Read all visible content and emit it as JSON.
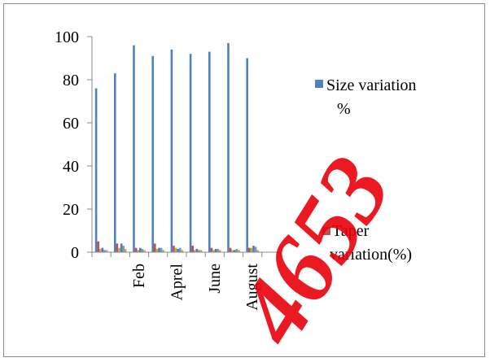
{
  "chart_data": {
    "type": "bar",
    "categories": [
      "",
      "",
      "Feb",
      "",
      "Aprel",
      "",
      "June",
      "",
      "August",
      ""
    ],
    "ylim": [
      0,
      100
    ],
    "yticks": [
      0,
      20,
      40,
      60,
      80,
      100
    ],
    "grid": false,
    "legend_position": "right",
    "series": [
      {
        "name": "Size variation %",
        "color": "#4f81bd",
        "values": [
          76,
          83,
          96,
          91,
          94,
          92,
          93,
          97,
          90,
          0
        ]
      },
      {
        "name": "Taper variation(%)",
        "color": "#c0504d",
        "values": [
          5,
          4,
          2,
          4,
          3,
          3,
          2,
          2,
          2,
          0
        ]
      },
      {
        "name": "",
        "color": "#9bbb59",
        "values": [
          1.5,
          2,
          1,
          1.5,
          2,
          1,
          1,
          1,
          2,
          0
        ]
      },
      {
        "name": "",
        "color": "#8064a2",
        "values": [
          2,
          4,
          2,
          2,
          1.5,
          1.5,
          1.5,
          1,
          3,
          0
        ]
      },
      {
        "name": "",
        "color": "#4bacc6",
        "values": [
          1,
          3,
          1.5,
          2,
          2,
          1,
          1.5,
          1.5,
          2.5,
          0
        ]
      },
      {
        "name": "",
        "color": "#f79646",
        "values": [
          1,
          1.5,
          1,
          1,
          1,
          1,
          1,
          1,
          1,
          0
        ]
      }
    ]
  },
  "legend": {
    "size_line1": "Size variation",
    "size_line2": "%",
    "taper_line1": "Taper",
    "taper_line2": "variation(%)"
  },
  "watermark": {
    "text": "4653",
    "color": "#e8000a"
  }
}
